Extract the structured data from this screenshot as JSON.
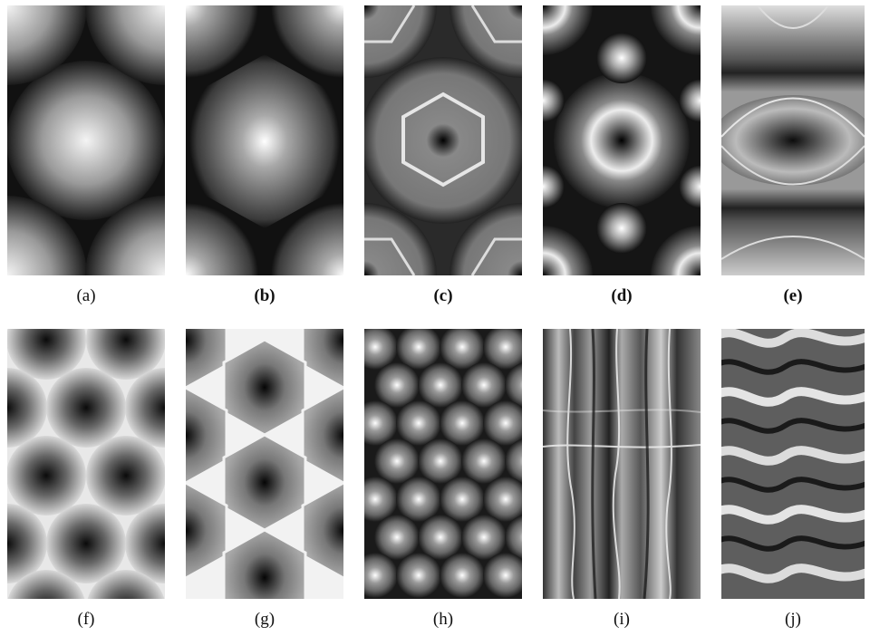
{
  "figure": {
    "panels": [
      {
        "id": "a",
        "label": "(a)",
        "pattern": "soft-blob-hexagonal"
      },
      {
        "id": "b",
        "label": "(b)",
        "pattern": "hexagonal-cell-bright-center"
      },
      {
        "id": "c",
        "label": "(c)",
        "pattern": "hexagon-ring-dark-center"
      },
      {
        "id": "d",
        "label": "(d)",
        "pattern": "ring-with-bright-satellite-spots"
      },
      {
        "id": "e",
        "label": "(e)",
        "pattern": "eye-shaped-banded"
      },
      {
        "id": "f",
        "label": "(f)",
        "pattern": "hexagonal-lattice-dark-centers"
      },
      {
        "id": "g",
        "label": "(g)",
        "pattern": "honeycomb-bright-edges"
      },
      {
        "id": "h",
        "label": "(h)",
        "pattern": "hexagonal-lattice-bright-spots"
      },
      {
        "id": "i",
        "label": "(i)",
        "pattern": "irregular-vertical-streaks"
      },
      {
        "id": "j",
        "label": "(j)",
        "pattern": "wavy-diagonal-stripes"
      }
    ]
  },
  "colors": {
    "background": "#ffffff",
    "dark": "#0c0c0c",
    "light": "#f4f4f4",
    "mid": "#8a8a8a"
  }
}
